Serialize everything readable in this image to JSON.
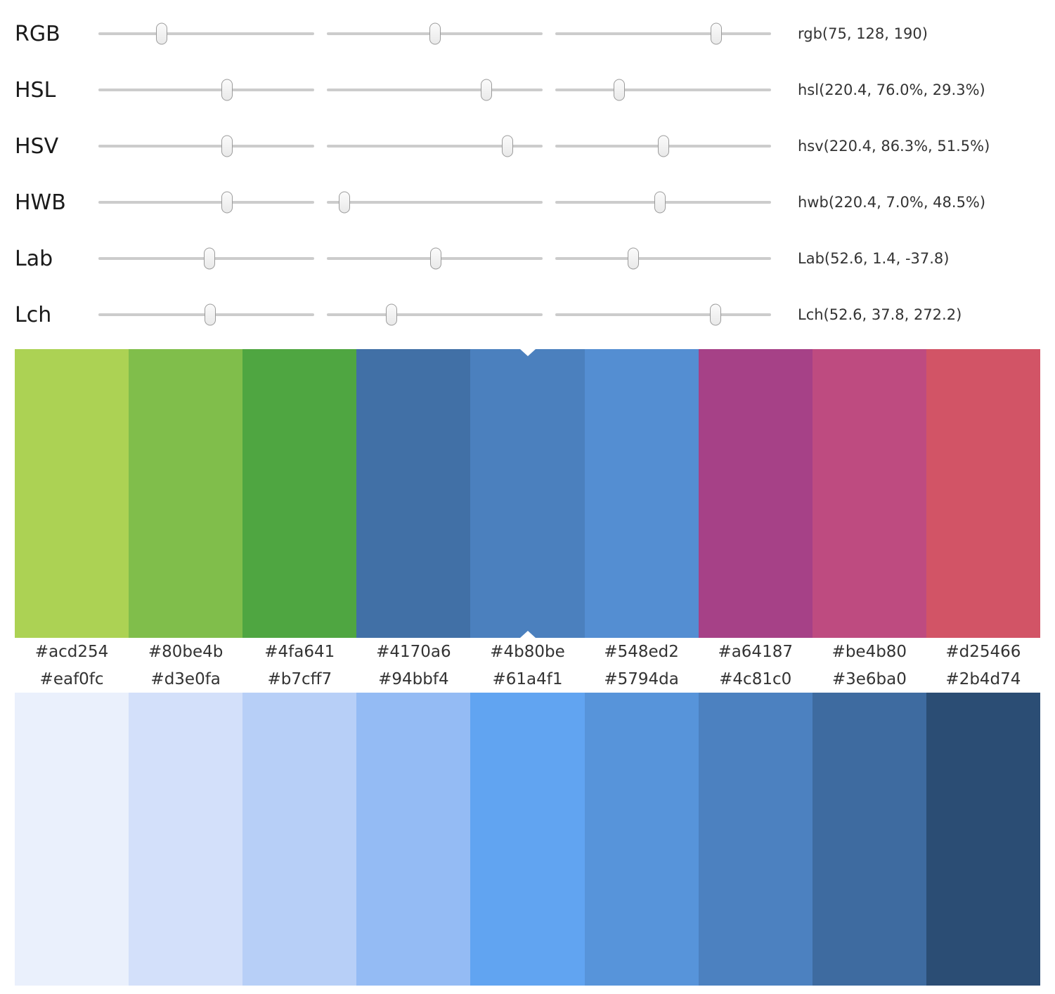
{
  "sliders": {
    "rows": [
      {
        "label": "RGB",
        "value_text": "rgb(75, 128, 190)",
        "thumbs_pct": [
          29.4,
          50.2,
          74.5
        ]
      },
      {
        "label": "HSL",
        "value_text": "hsl(220.4, 76.0%, 29.3%)",
        "thumbs_pct": [
          59.5,
          73.8,
          29.7
        ]
      },
      {
        "label": "HSV",
        "value_text": "hsv(220.4, 86.3%, 51.5%)",
        "thumbs_pct": [
          59.5,
          83.6,
          50.3
        ]
      },
      {
        "label": "HWB",
        "value_text": "hwb(220.4, 7.0%, 48.5%)",
        "thumbs_pct": [
          59.5,
          8.2,
          48.4
        ]
      },
      {
        "label": "Lab",
        "value_text": "Lab(52.6, 1.4, -37.8)",
        "thumbs_pct": [
          51.5,
          50.6,
          36.3
        ]
      },
      {
        "label": "Lch",
        "value_text": "Lch(52.6, 37.8, 272.2)",
        "thumbs_pct": [
          51.8,
          30.1,
          74.2
        ]
      }
    ]
  },
  "palettes": {
    "top": {
      "selected_index": 4,
      "swatches": [
        "#acd254",
        "#80be4b",
        "#4fa641",
        "#4170a6",
        "#4b80be",
        "#548ed2",
        "#a64187",
        "#be4b80",
        "#d25466"
      ]
    },
    "bottom": {
      "swatches": [
        "#eaf0fc",
        "#d3e0fa",
        "#b7cff7",
        "#94bbf4",
        "#61a4f1",
        "#5794da",
        "#4c81c0",
        "#3e6ba0",
        "#2b4d74"
      ]
    }
  }
}
